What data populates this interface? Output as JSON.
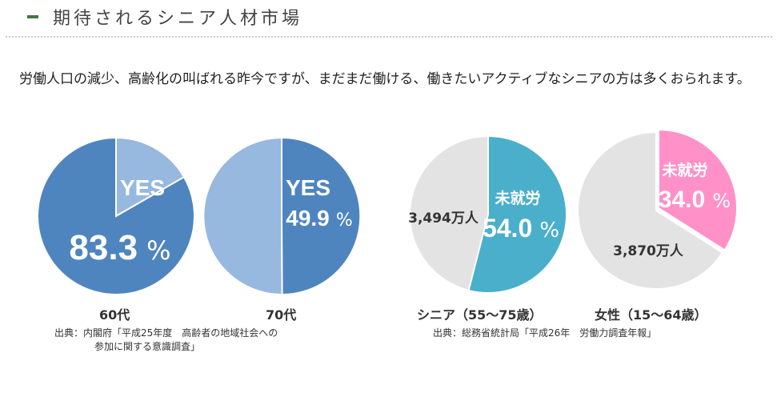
{
  "page": {
    "heading": "期待されるシニア人材市場",
    "intro": "労働人口の減少、高齢化の叫ばれる昨今ですが、まだまだ働ける、働きたいアクティブなシニアの方は多くおられます。"
  },
  "colors": {
    "blue_dark": "#4f85be",
    "blue_light": "#97b8df",
    "teal": "#4aafca",
    "pink": "#ff91c8",
    "gray": "#e3e3e3",
    "heading_bar": "#3f7a3a"
  },
  "chart_data": [
    {
      "type": "pie",
      "category_label": "60代",
      "slice_label": "YES",
      "value": 83.3,
      "value_text": "83.3",
      "unit": "%",
      "other_value": 16.7
    },
    {
      "type": "pie",
      "category_label": "70代",
      "slice_label": "YES",
      "value": 49.9,
      "value_text": "49.9",
      "unit": "%",
      "other_value": 50.1
    },
    {
      "type": "pie",
      "category_label": "シニア（55〜75歳）",
      "slice_label": "未就労",
      "value": 54.0,
      "value_text": "54.0",
      "unit": "%",
      "total_label": "3,494万人"
    },
    {
      "type": "pie",
      "category_label": "女性（15〜64歳）",
      "slice_label": "未就労",
      "value": 34.0,
      "value_text": "34.0",
      "unit": "%",
      "total_label": "3,870万人"
    }
  ],
  "sources": {
    "left_line1": "出典：内閣府「平成25年度　高齢者の地域社会への",
    "left_line2": "参加に関する意識調査」",
    "right": "出典：総務省統計局「平成26年　労働力調査年報」"
  }
}
